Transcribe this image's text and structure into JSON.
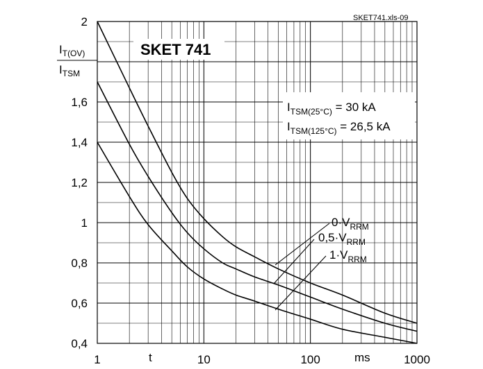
{
  "chart_data": {
    "type": "line",
    "title": "SKET 741",
    "source_tag": "SKET741.xls-09",
    "x_scale": "log",
    "xlim": [
      1,
      1000
    ],
    "ylim": [
      0.4,
      2
    ],
    "x_ticks": [
      "1",
      "10",
      "100",
      "1000"
    ],
    "y_ticks": [
      "0,4",
      "0,6",
      "0,8",
      "1",
      "1,2",
      "1,4",
      "1,6",
      "2"
    ],
    "xlabel_t": "t",
    "xlabel_unit": "ms",
    "ylabel": {
      "top": "I",
      "top_sub": "T(OV)",
      "bottom": "I",
      "bottom_sub": "TSM"
    },
    "annotation": {
      "line1_main": "I",
      "line1_sub": "TSM(25°C)",
      "line1_val": " = 30 kA",
      "line2_main": "I",
      "line2_sub": "TSM(125°C)",
      "line2_val": " = 26,5 kA"
    },
    "series": [
      {
        "label_main": "0·V",
        "label_sub": "RRM",
        "x": [
          1,
          2,
          3,
          5,
          7,
          10,
          15,
          20,
          30,
          50,
          100,
          200,
          500,
          1000
        ],
        "y": [
          2.0,
          1.67,
          1.48,
          1.25,
          1.12,
          1.02,
          0.93,
          0.88,
          0.83,
          0.77,
          0.7,
          0.64,
          0.55,
          0.5
        ]
      },
      {
        "label_main": "0,5·V",
        "label_sub": "RRM",
        "x": [
          1,
          2,
          3,
          5,
          7,
          10,
          15,
          20,
          30,
          50,
          100,
          200,
          500,
          1000
        ],
        "y": [
          1.7,
          1.39,
          1.23,
          1.05,
          0.95,
          0.87,
          0.8,
          0.77,
          0.73,
          0.69,
          0.63,
          0.57,
          0.5,
          0.46
        ]
      },
      {
        "label_main": "1·V",
        "label_sub": "RRM",
        "x": [
          1,
          2,
          3,
          5,
          7,
          10,
          15,
          20,
          30,
          50,
          100,
          200,
          500,
          1000
        ],
        "y": [
          1.4,
          1.13,
          0.99,
          0.86,
          0.78,
          0.72,
          0.67,
          0.64,
          0.61,
          0.57,
          0.52,
          0.47,
          0.43,
          0.4
        ]
      }
    ]
  }
}
